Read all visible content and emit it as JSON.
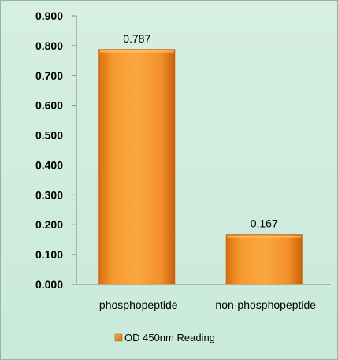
{
  "chart_data": {
    "type": "bar",
    "categories": [
      "phosphopeptide",
      "non-phosphopeptide"
    ],
    "series": [
      {
        "name": "OD 450nm Reading",
        "values": [
          0.787,
          0.167
        ]
      }
    ],
    "data_labels": [
      "0.787",
      "0.167"
    ],
    "ylim": [
      0,
      0.9
    ],
    "yticks": [
      "0.000",
      "0.100",
      "0.200",
      "0.300",
      "0.400",
      "0.500",
      "0.600",
      "0.700",
      "0.800",
      "0.900"
    ],
    "grid": false,
    "legend_position": "bottom",
    "colors": {
      "bar": "#f7941d",
      "bar_dark": "#c8620a",
      "background": "#cfeede"
    }
  }
}
